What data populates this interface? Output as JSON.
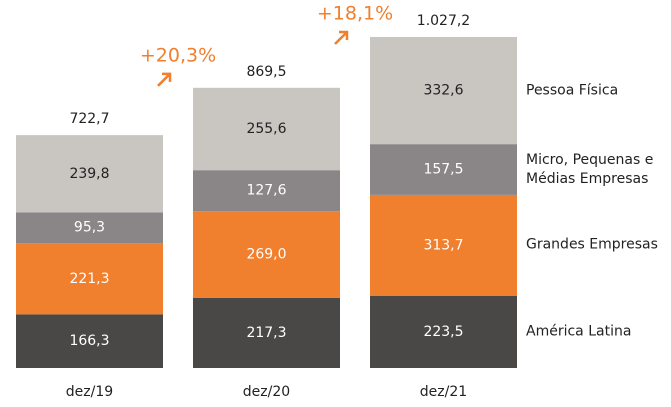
{
  "chart_data": {
    "type": "stacked_bar",
    "categories": [
      "dez/19",
      "dez/20",
      "dez/21"
    ],
    "series": [
      {
        "name": "América Latina",
        "color": "#4a4846",
        "values": [
          166.3,
          217.3,
          223.5
        ],
        "value_labels": [
          "166,3",
          "217,3",
          "223,5"
        ]
      },
      {
        "name": "Grandes Empresas",
        "color": "#f07f2e",
        "values": [
          221.3,
          269.0,
          313.7
        ],
        "value_labels": [
          "221,3",
          "269,0",
          "313,7"
        ]
      },
      {
        "name": "Micro, Pequenas e Médias Empresas",
        "color": "#8a8587",
        "values": [
          95.3,
          127.6,
          157.5
        ],
        "value_labels": [
          "95,3",
          "127,6",
          "157,5"
        ]
      },
      {
        "name": "Pessoa Física",
        "color": "#c9c5c1",
        "values": [
          239.8,
          255.6,
          332.6
        ],
        "value_labels": [
          "239,8",
          "255,6",
          "332,6"
        ]
      }
    ],
    "totals": [
      722.7,
      869.5,
      1027.2
    ],
    "totals_labels": [
      "722,7",
      "869,5",
      "1.027,2"
    ],
    "annotations": [
      {
        "text": "+20,3%",
        "color": "#f07f2e"
      },
      {
        "text": "+18,1%",
        "color": "#f07f2e"
      }
    ]
  }
}
